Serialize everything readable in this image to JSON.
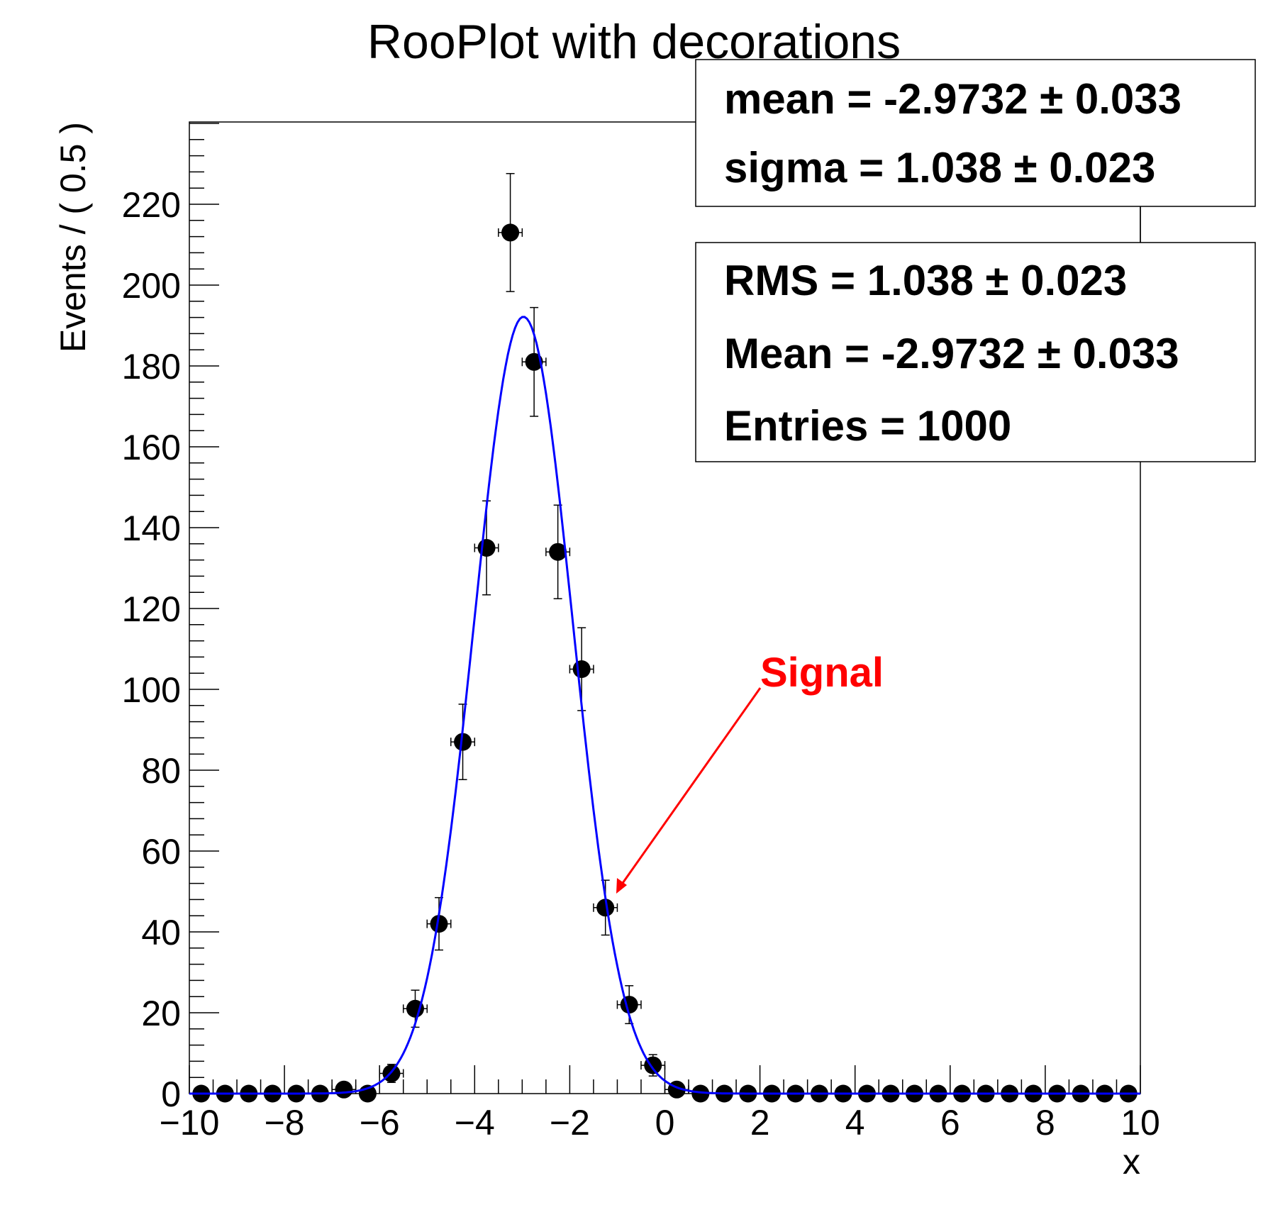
{
  "chart_data": {
    "type": "scatter",
    "title": "RooPlot with decorations",
    "xlabel": "x",
    "ylabel": "Events / ( 0.5 )",
    "xlim": [
      -10,
      10
    ],
    "ylim": [
      0,
      240
    ],
    "grid": false,
    "x_ticks": [
      -10,
      -8,
      -6,
      -4,
      -2,
      0,
      2,
      4,
      6,
      8,
      10
    ],
    "x_tick_labels": [
      "−10",
      "−8",
      "−6",
      "−4",
      "−2",
      "0",
      "2",
      "4",
      "6",
      "8",
      "10"
    ],
    "y_ticks": [
      0,
      20,
      40,
      60,
      80,
      100,
      120,
      140,
      160,
      180,
      200,
      220
    ],
    "y_tick_labels": [
      "0",
      "20",
      "40",
      "60",
      "80",
      "100",
      "120",
      "140",
      "160",
      "180",
      "200",
      "220"
    ],
    "bin_width": 0.5,
    "series": [
      {
        "name": "data",
        "style": "points-with-poisson-errors",
        "color": "#000000",
        "x": [
          -9.75,
          -9.25,
          -8.75,
          -8.25,
          -7.75,
          -7.25,
          -6.75,
          -6.25,
          -5.75,
          -5.25,
          -4.75,
          -4.25,
          -3.75,
          -3.25,
          -2.75,
          -2.25,
          -1.75,
          -1.25,
          -0.75,
          -0.25,
          0.25,
          0.75,
          1.25,
          1.75,
          2.25,
          2.75,
          3.25,
          3.75,
          4.25,
          4.75,
          5.25,
          5.75,
          6.25,
          6.75,
          7.25,
          7.75,
          8.25,
          8.75,
          9.25,
          9.75
        ],
        "values": [
          0,
          0,
          0,
          0,
          0,
          0,
          1,
          0,
          5,
          21,
          42,
          87,
          135,
          213,
          181,
          134,
          105,
          46,
          22,
          7,
          1,
          0,
          0,
          0,
          0,
          0,
          0,
          0,
          0,
          0,
          0,
          0,
          0,
          0,
          0,
          0,
          0,
          0,
          0,
          0
        ]
      },
      {
        "name": "gauss fit",
        "style": "line",
        "color": "#0000ff",
        "function": "gaussian",
        "mean": -2.9732,
        "sigma": 1.038,
        "normalization_events": 1000
      }
    ],
    "stat_boxes": [
      {
        "lines": [
          "mean = -2.9732 ± 0.033",
          "sigma =  1.038 ± 0.023"
        ]
      },
      {
        "lines": [
          "RMS =  1.038 ± 0.023",
          "Mean = -2.9732 ± 0.033",
          "Entries =  1000"
        ]
      }
    ],
    "annotations": [
      {
        "text": "Signal",
        "color": "#ff0000",
        "arrow_to": [
          -1.1,
          49
        ],
        "text_at": [
          2.0,
          100
        ]
      }
    ],
    "legend": null
  },
  "title": "RooPlot with decorations",
  "axes": {
    "x_title": "x",
    "y_title": "Events / ( 0.5 )"
  },
  "stats": {
    "box1": {
      "mean_line": "mean = -2.9732 ± 0.033",
      "sigma_line": "sigma =  1.038 ± 0.023"
    },
    "box2": {
      "rms_line": "RMS =  1.038 ± 0.023",
      "mean_line": "Mean = -2.9732 ± 0.033",
      "entries_line": "Entries =  1000"
    }
  },
  "annotation": {
    "label": "Signal",
    "color": "#ff0000"
  },
  "colors": {
    "fit_line": "#0000ff",
    "markers": "#000000",
    "frame": "#000000"
  }
}
